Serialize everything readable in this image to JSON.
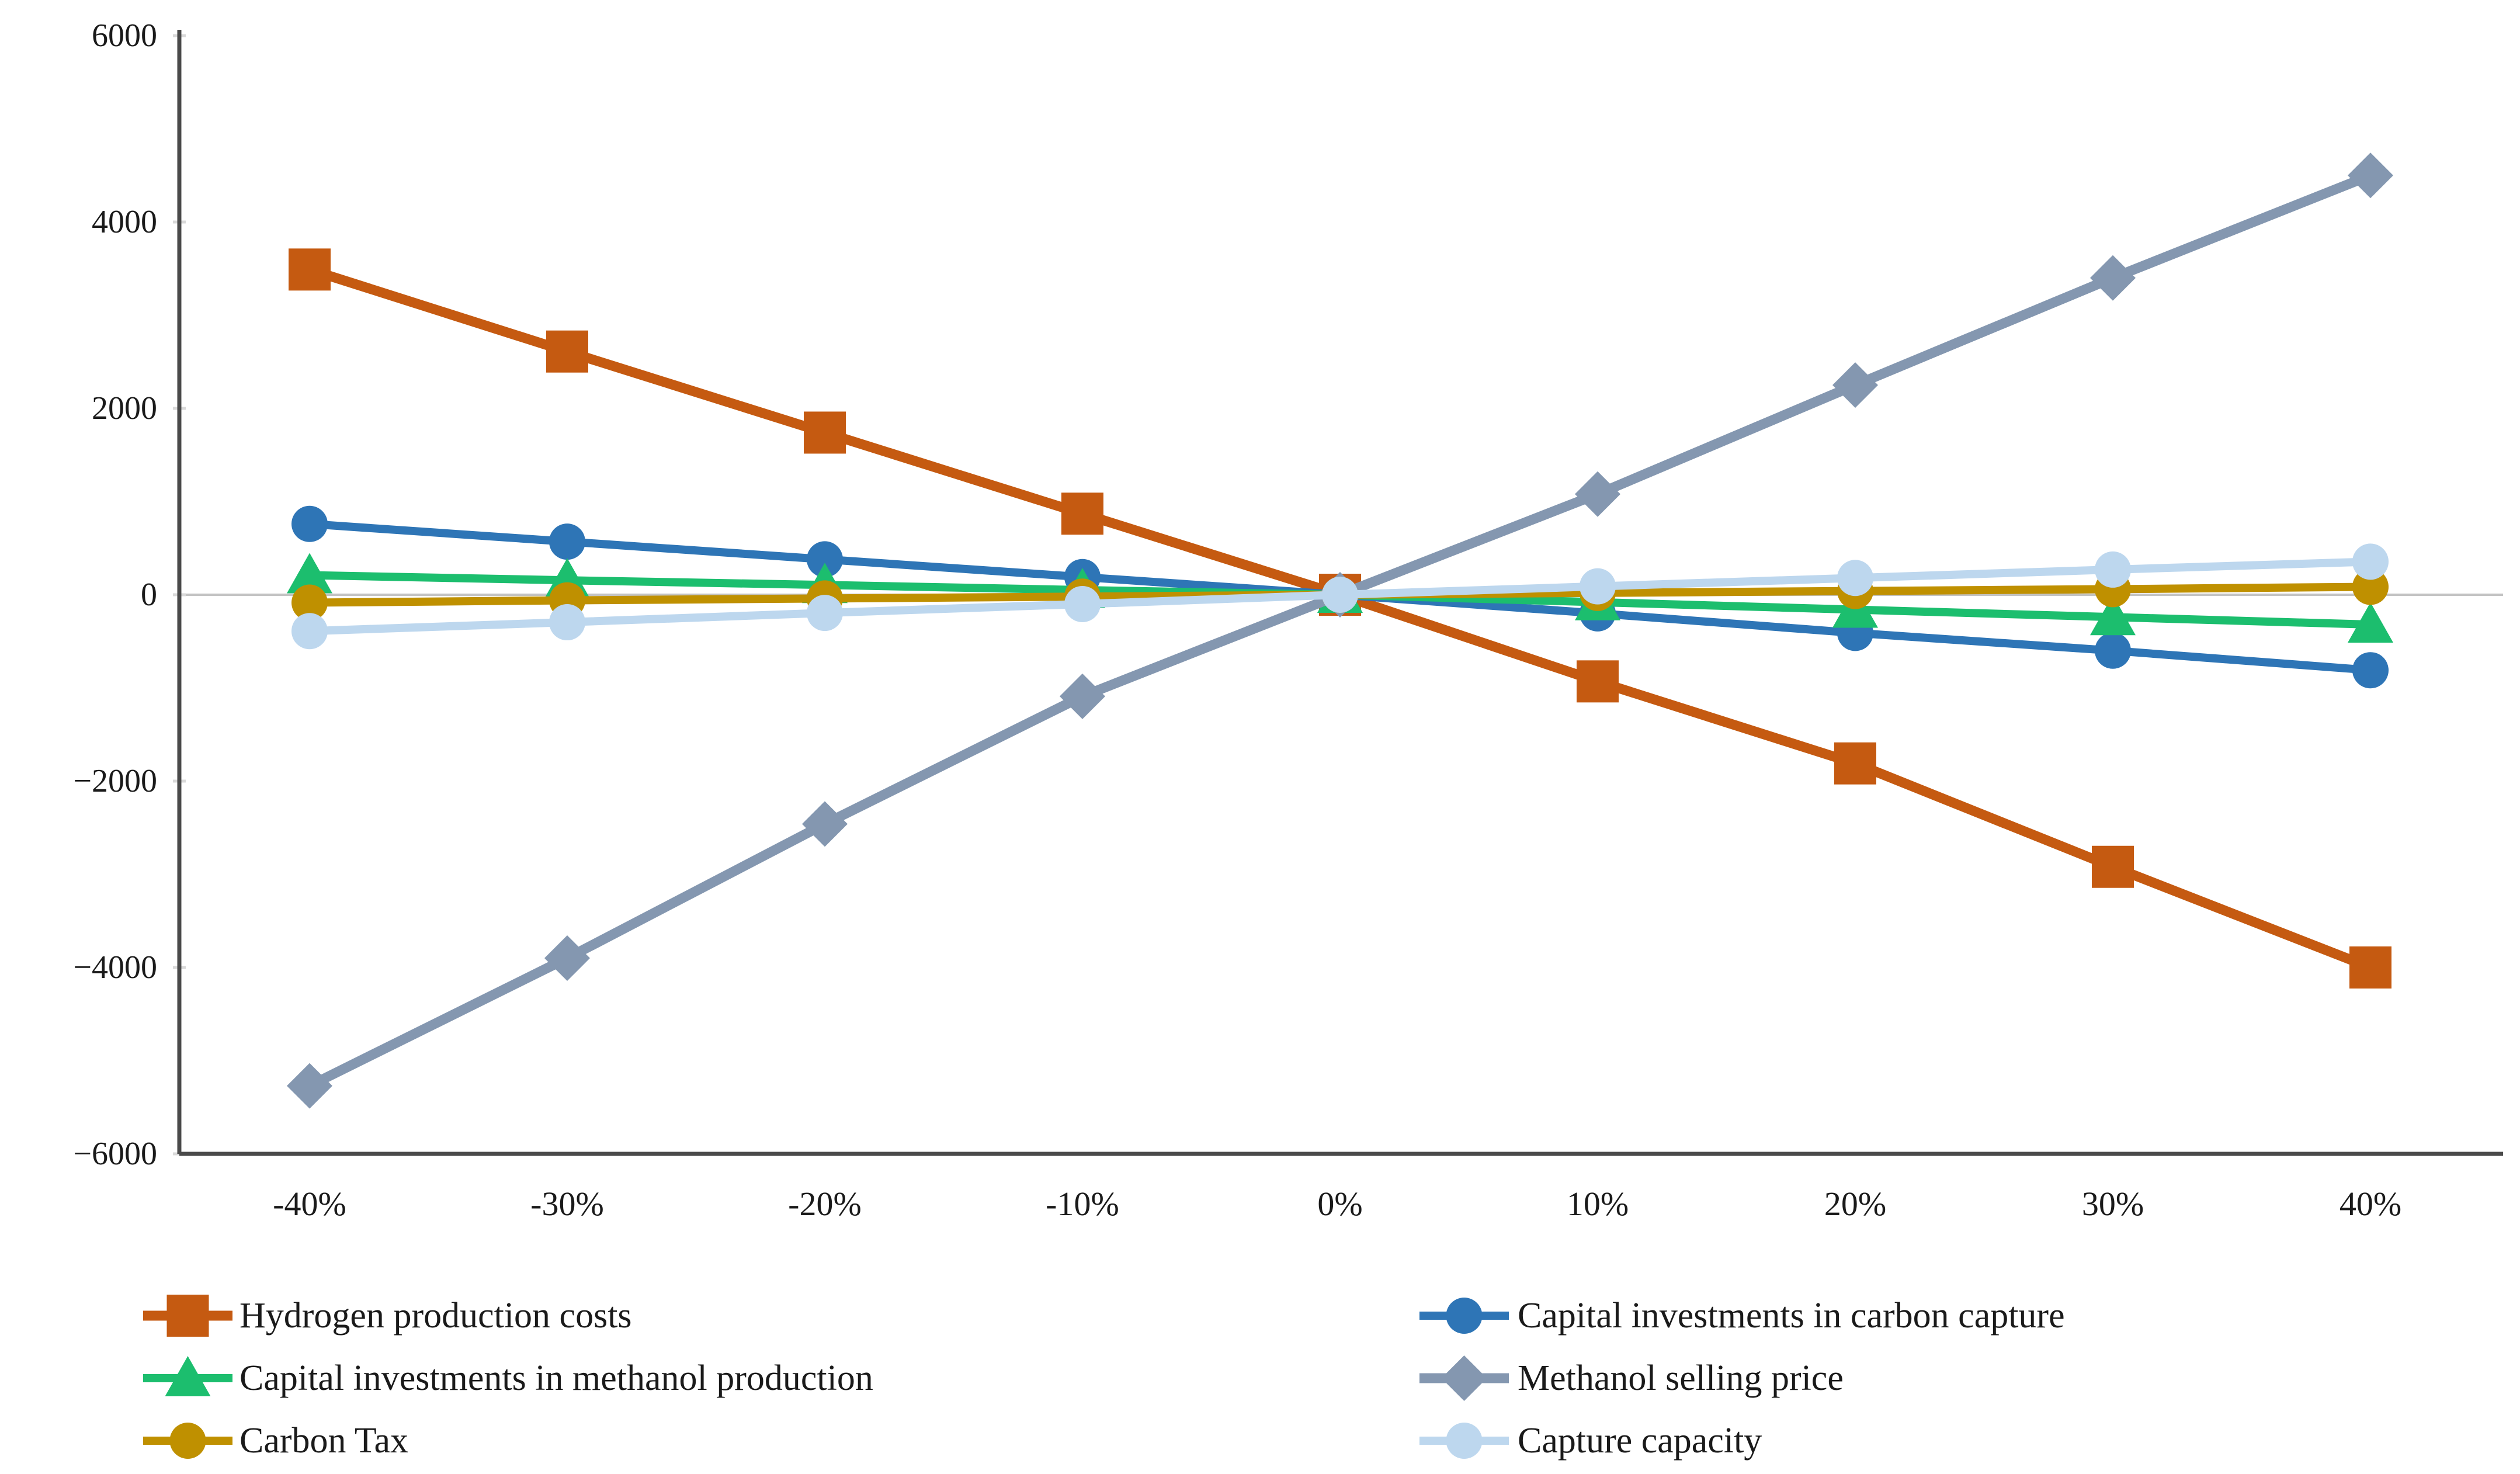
{
  "chart_data": {
    "type": "line",
    "title": "",
    "xlabel": "",
    "ylabel": "",
    "categories": [
      "-40%",
      "-30%",
      "-20%",
      "-10%",
      "0%",
      "10%",
      "20%",
      "30%",
      "40%"
    ],
    "ylim": [
      -6000,
      6000
    ],
    "ytick_step": 2000,
    "ytick_labels": [
      "6000",
      "4000",
      "2000",
      "0",
      "−2000",
      "−4000",
      "−6000"
    ],
    "grid": "zero-line-only",
    "legend_position": "bottom-two-columns",
    "series": [
      {
        "name": "Hydrogen production costs",
        "color": "#C55A11",
        "marker": "square",
        "values": [
          3490,
          2610,
          1740,
          870,
          0,
          -930,
          -1810,
          -2920,
          -4000
        ]
      },
      {
        "name": "Capital investments in carbon capture",
        "color": "#2E75B6",
        "marker": "circle",
        "values": [
          760,
          570,
          380,
          190,
          0,
          -200,
          -410,
          -600,
          -810
        ]
      },
      {
        "name": "Capital investments in methanol production",
        "color": "#1CBE6E",
        "marker": "triangle",
        "values": [
          210,
          155,
          105,
          50,
          0,
          -80,
          -160,
          -240,
          -320
        ]
      },
      {
        "name": "Methanol selling price",
        "color": "#8497B0",
        "marker": "diamond",
        "values": [
          -5270,
          -3900,
          -2460,
          -1090,
          0,
          1080,
          2250,
          3400,
          4500
        ]
      },
      {
        "name": "Carbon Tax",
        "color": "#BF9000",
        "marker": "circle",
        "values": [
          -85,
          -60,
          -40,
          -20,
          0,
          20,
          40,
          60,
          85
        ]
      },
      {
        "name": "Capture capacity",
        "color": "#BDD7EE",
        "marker": "circle",
        "values": [
          -390,
          -295,
          -195,
          -100,
          0,
          90,
          180,
          270,
          355
        ]
      }
    ],
    "legend_columns": [
      [
        "Hydrogen production costs",
        "Capital investments in methanol production",
        "Carbon Tax"
      ],
      [
        "Capital investments in carbon capture",
        "Methanol selling price",
        "Capture capacity"
      ]
    ]
  },
  "style_colors": {
    "axis_line": "#4a4a4a",
    "zero_gridline": "#c3c3c3",
    "tick_mark": "#d9d9d9",
    "label_text": "#1a1a1a"
  }
}
